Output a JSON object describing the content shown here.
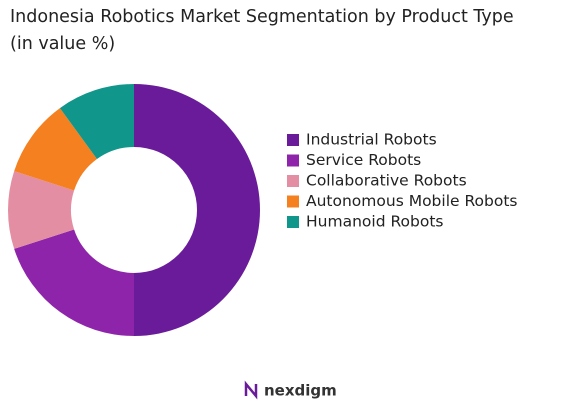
{
  "chart_data": {
    "type": "donut",
    "title": "Indonesia Robotics Market Segmentation by Product Type (in value %)",
    "categories": [
      "Industrial Robots",
      "Service Robots",
      "Collaborative Robots",
      "Autonomous Mobile Robots",
      "Humanoid Robots"
    ],
    "values": [
      50,
      20,
      10,
      10,
      10
    ],
    "colors": [
      "#6a1b9a",
      "#8e24aa",
      "#e38ea3",
      "#f4801f",
      "#10968a"
    ],
    "legend": "right"
  },
  "footer": {
    "brand": "nexdigm"
  }
}
